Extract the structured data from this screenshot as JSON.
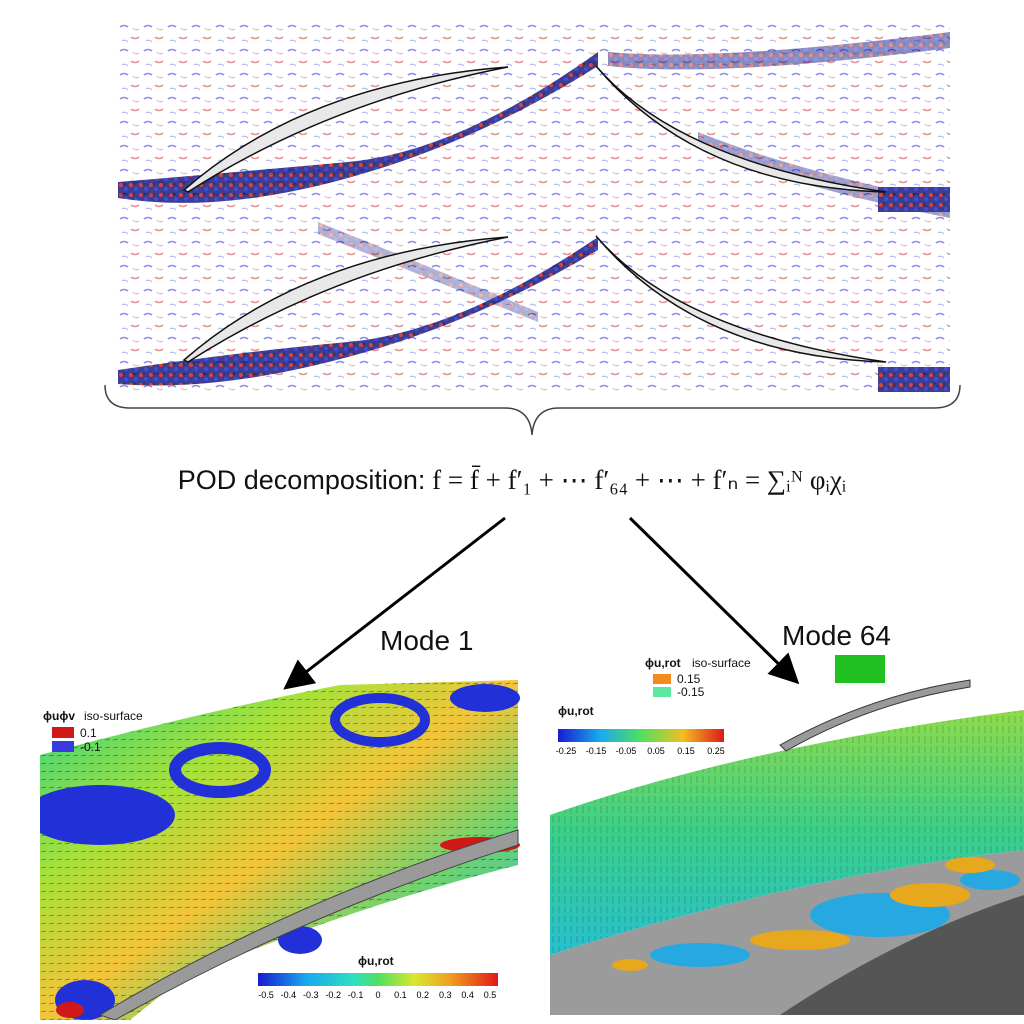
{
  "equation": {
    "label": "POD decomposition:",
    "formula": "f = f̄ + f′₁ + ⋯ f′₆₄ + ⋯ + f′ₙ = ∑ᵢᴺ φᵢχᵢ"
  },
  "mode1": {
    "title": "Mode 1",
    "iso_title_sym": "ϕuϕv",
    "iso_title_word": "iso-surface",
    "iso_entries": [
      {
        "label": "0.1",
        "color": "#d01818"
      },
      {
        "label": "-0.1",
        "color": "#3a3ae0"
      }
    ],
    "colorbar_title": "ϕu,rot",
    "colorbar_ticks": [
      "-0.5",
      "-0.4",
      "-0.3",
      "-0.2",
      "-0.1",
      "0",
      "0.1",
      "0.2",
      "0.3",
      "0.4",
      "0.5"
    ]
  },
  "mode64": {
    "title": "Mode 64",
    "iso_title_sym": "ϕu,rot",
    "iso_title_word": "iso-surface",
    "iso_entries": [
      {
        "label": "0.15",
        "color": "#f28a1e"
      },
      {
        "label": "-0.15",
        "color": "#5de8a0"
      }
    ],
    "colorbar_title": "ϕu,rot",
    "colorbar_ticks": [
      "-0.25",
      "-0.15",
      "-0.05",
      "0.05",
      "0.15",
      "0.25"
    ]
  },
  "colors": {
    "vortex_red": "#d42020",
    "vortex_blue": "#1f2fd0",
    "blade_fill": "#e8e8e8",
    "arrow": "#000000"
  }
}
